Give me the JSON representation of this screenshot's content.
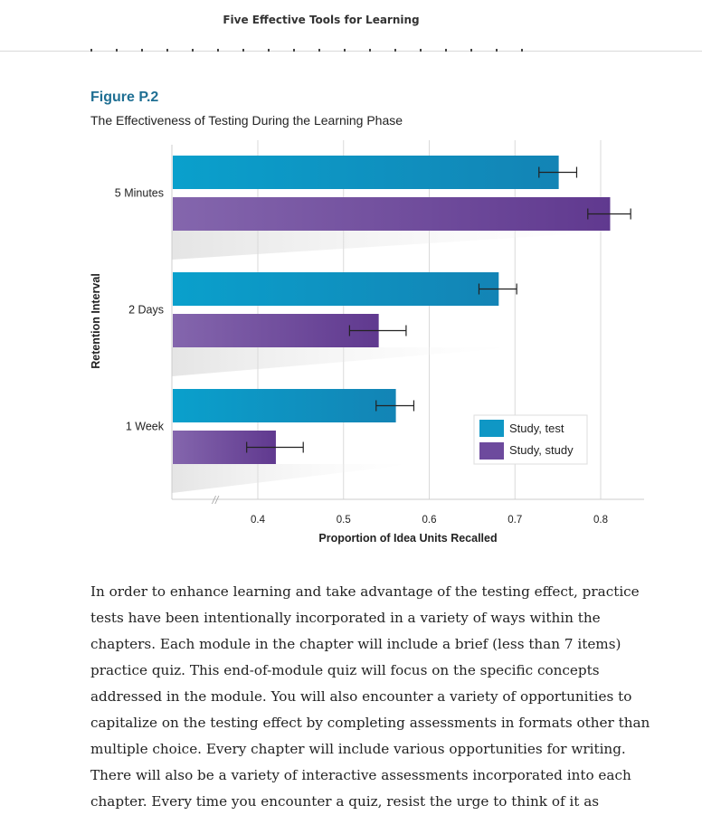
{
  "header": {
    "title": "Five Effective Tools for Learning"
  },
  "figure": {
    "label": "Figure P.2",
    "caption": "The Effectiveness of Testing During the Learning Phase"
  },
  "colors": {
    "study_test": "#0f97c5",
    "study_study": "#6d4a9d"
  },
  "chart_data": {
    "type": "bar",
    "orientation": "horizontal",
    "categories": [
      "5 Minutes",
      "2 Days",
      "1 Week"
    ],
    "series": [
      {
        "name": "Study, test",
        "values": [
          0.75,
          0.68,
          0.56
        ],
        "errors": [
          0.022,
          0.022,
          0.022
        ]
      },
      {
        "name": "Study, study",
        "values": [
          0.81,
          0.54,
          0.42
        ],
        "errors": [
          0.025,
          0.033,
          0.033
        ]
      }
    ],
    "xlabel": "Proportion of Idea Units Recalled",
    "ylabel": "Retention Interval",
    "xlim": [
      0.3,
      0.85
    ],
    "xticks": [
      "0.4",
      "0.5",
      "0.6",
      "0.7",
      "0.8"
    ],
    "axis_break": "//",
    "grid": true,
    "legend_position": "bottom-right"
  },
  "body_text": "In order to enhance learning and take advantage of the testing effect, practice tests have been intentionally incorporated in a variety of ways within the chapters. Each module in the chapter will include a brief (less than 7 items) practice quiz. This end-of-module quiz will focus on the specific concepts addressed in the module. You will also encounter a variety of opportunities to capitalize on the testing effect by completing assessments in formats other than multiple choice. Every chapter will include various opportunities for writing. There will also be a variety of interactive assessments incorporated into each chapter. Every time you encounter a quiz, resist the urge to think of it as"
}
